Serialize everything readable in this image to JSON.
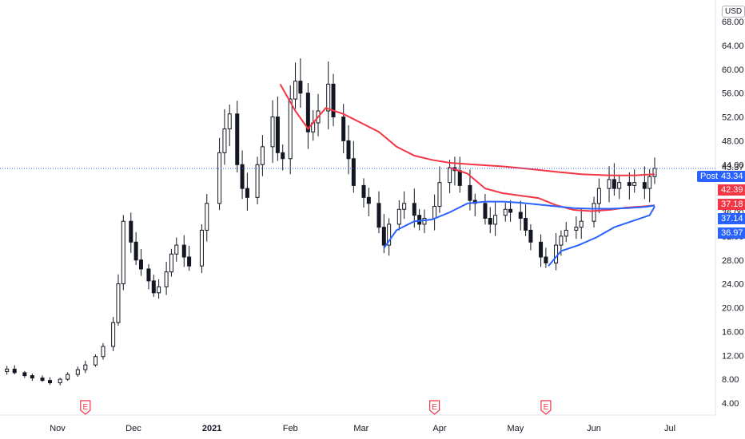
{
  "currency": "USD",
  "labels": {
    "last": "43.37",
    "post_tag": "Post",
    "post": "43.34",
    "ema_red_1": "42.39",
    "ema_red_2": "37.18",
    "ema_blue_1": "37.14",
    "ema_blue_2": "36.97"
  },
  "colors": {
    "up": "#131722",
    "down": "#131722",
    "ema_red": "#f23645",
    "ema_blue": "#2962ff",
    "post": "#2962ff",
    "last_line": "#2962ff"
  },
  "earnings_marker": "E",
  "chart_data": {
    "type": "candlestick",
    "y_ticks": [
      "4.00",
      "8.00",
      "12.00",
      "16.00",
      "20.00",
      "24.00",
      "28.00",
      "32.00",
      "36.00",
      "40.00",
      "44.00",
      "48.00",
      "52.00",
      "56.00",
      "60.00",
      "64.00",
      "68.00"
    ],
    "x_ticks": [
      {
        "label": "Nov",
        "date": "2020-11-01",
        "bold": false
      },
      {
        "label": "Dec",
        "date": "2020-12-01",
        "bold": false
      },
      {
        "label": "2021",
        "date": "2021-01-01",
        "bold": true
      },
      {
        "label": "Feb",
        "date": "2021-02-01",
        "bold": false
      },
      {
        "label": "Mar",
        "date": "2021-03-01",
        "bold": false
      },
      {
        "label": "Apr",
        "date": "2021-04-01",
        "bold": false
      },
      {
        "label": "May",
        "date": "2021-05-01",
        "bold": false
      },
      {
        "label": "Jun",
        "date": "2021-06-01",
        "bold": false
      },
      {
        "label": "Jul",
        "date": "2021-07-01",
        "bold": false
      }
    ],
    "ylim": [
      2,
      70
    ],
    "earnings_dates": [
      "2020-11-12",
      "2021-03-30",
      "2021-05-13"
    ],
    "close_series": [
      {
        "date": "2020-10-05",
        "c": 9.5
      },
      {
        "date": "2020-10-08",
        "c": 9.3
      },
      {
        "date": "2020-10-12",
        "c": 9.7
      },
      {
        "date": "2020-10-15",
        "c": 9.1
      },
      {
        "date": "2020-10-19",
        "c": 8.6
      },
      {
        "date": "2020-10-22",
        "c": 8.2
      },
      {
        "date": "2020-10-26",
        "c": 7.8
      },
      {
        "date": "2020-10-29",
        "c": 7.4
      },
      {
        "date": "2020-11-02",
        "c": 8.0
      },
      {
        "date": "2020-11-05",
        "c": 8.8
      },
      {
        "date": "2020-11-09",
        "c": 9.6
      },
      {
        "date": "2020-11-12",
        "c": 10.4
      },
      {
        "date": "2020-11-16",
        "c": 11.8
      },
      {
        "date": "2020-11-19",
        "c": 13.5
      },
      {
        "date": "2020-11-23",
        "c": 17.5
      },
      {
        "date": "2020-11-25",
        "c": 24.0
      },
      {
        "date": "2020-11-27",
        "c": 34.5
      },
      {
        "date": "2020-11-30",
        "c": 31.0
      },
      {
        "date": "2020-12-02",
        "c": 28.0
      },
      {
        "date": "2020-12-04",
        "c": 26.5
      },
      {
        "date": "2020-12-07",
        "c": 24.5
      },
      {
        "date": "2020-12-09",
        "c": 22.5
      },
      {
        "date": "2020-12-11",
        "c": 23.5
      },
      {
        "date": "2020-12-14",
        "c": 26.0
      },
      {
        "date": "2020-12-16",
        "c": 29.0
      },
      {
        "date": "2020-12-18",
        "c": 30.5
      },
      {
        "date": "2020-12-21",
        "c": 28.5
      },
      {
        "date": "2020-12-23",
        "c": 27.0
      },
      {
        "date": "2020-12-28",
        "c": 33.0
      },
      {
        "date": "2020-12-30",
        "c": 37.5
      },
      {
        "date": "2021-01-04",
        "c": 46.0
      },
      {
        "date": "2021-01-06",
        "c": 50.0
      },
      {
        "date": "2021-01-08",
        "c": 52.5
      },
      {
        "date": "2021-01-11",
        "c": 44.0
      },
      {
        "date": "2021-01-13",
        "c": 40.0
      },
      {
        "date": "2021-01-15",
        "c": 38.5
      },
      {
        "date": "2021-01-19",
        "c": 44.0
      },
      {
        "date": "2021-01-21",
        "c": 47.0
      },
      {
        "date": "2021-01-25",
        "c": 52.0
      },
      {
        "date": "2021-01-27",
        "c": 46.0
      },
      {
        "date": "2021-01-29",
        "c": 45.0
      },
      {
        "date": "2021-02-01",
        "c": 55.0
      },
      {
        "date": "2021-02-03",
        "c": 58.0
      },
      {
        "date": "2021-02-05",
        "c": 56.0
      },
      {
        "date": "2021-02-08",
        "c": 49.5
      },
      {
        "date": "2021-02-10",
        "c": 51.0
      },
      {
        "date": "2021-02-12",
        "c": 53.0
      },
      {
        "date": "2021-02-16",
        "c": 57.5
      },
      {
        "date": "2021-02-18",
        "c": 52.0
      },
      {
        "date": "2021-02-22",
        "c": 48.0
      },
      {
        "date": "2021-02-24",
        "c": 45.0
      },
      {
        "date": "2021-02-26",
        "c": 40.5
      },
      {
        "date": "2021-03-02",
        "c": 38.5
      },
      {
        "date": "2021-03-04",
        "c": 37.5
      },
      {
        "date": "2021-03-08",
        "c": 33.5
      },
      {
        "date": "2021-03-10",
        "c": 30.5
      },
      {
        "date": "2021-03-12",
        "c": 34.0
      },
      {
        "date": "2021-03-16",
        "c": 36.5
      },
      {
        "date": "2021-03-18",
        "c": 37.5
      },
      {
        "date": "2021-03-22",
        "c": 35.5
      },
      {
        "date": "2021-03-24",
        "c": 34.0
      },
      {
        "date": "2021-03-26",
        "c": 35.0
      },
      {
        "date": "2021-03-30",
        "c": 37.0
      },
      {
        "date": "2021-04-01",
        "c": 41.0
      },
      {
        "date": "2021-04-05",
        "c": 43.5
      },
      {
        "date": "2021-04-07",
        "c": 43.0
      },
      {
        "date": "2021-04-09",
        "c": 40.5
      },
      {
        "date": "2021-04-13",
        "c": 38.0
      },
      {
        "date": "2021-04-15",
        "c": 37.5
      },
      {
        "date": "2021-04-19",
        "c": 35.0
      },
      {
        "date": "2021-04-21",
        "c": 34.0
      },
      {
        "date": "2021-04-23",
        "c": 35.5
      },
      {
        "date": "2021-04-27",
        "c": 36.5
      },
      {
        "date": "2021-04-29",
        "c": 36.0
      },
      {
        "date": "2021-05-03",
        "c": 35.0
      },
      {
        "date": "2021-05-05",
        "c": 33.0
      },
      {
        "date": "2021-05-07",
        "c": 31.0
      },
      {
        "date": "2021-05-11",
        "c": 28.5
      },
      {
        "date": "2021-05-13",
        "c": 27.5
      },
      {
        "date": "2021-05-17",
        "c": 30.5
      },
      {
        "date": "2021-05-19",
        "c": 32.0
      },
      {
        "date": "2021-05-21",
        "c": 33.0
      },
      {
        "date": "2021-05-25",
        "c": 33.5
      },
      {
        "date": "2021-05-27",
        "c": 34.5
      },
      {
        "date": "2021-06-01",
        "c": 37.5
      },
      {
        "date": "2021-06-03",
        "c": 40.0
      },
      {
        "date": "2021-06-07",
        "c": 41.5
      },
      {
        "date": "2021-06-09",
        "c": 40.0
      },
      {
        "date": "2021-06-11",
        "c": 41.0
      },
      {
        "date": "2021-06-15",
        "c": 40.5
      },
      {
        "date": "2021-06-17",
        "c": 41.0
      },
      {
        "date": "2021-06-21",
        "c": 40.0
      },
      {
        "date": "2021-06-23",
        "c": 42.0
      },
      {
        "date": "2021-06-25",
        "c": 43.37
      }
    ],
    "ema_red": [
      {
        "date": "2021-01-28",
        "v": 57.5
      },
      {
        "date": "2021-02-03",
        "v": 53.0
      },
      {
        "date": "2021-02-08",
        "v": 50.0
      },
      {
        "date": "2021-02-15",
        "v": 53.5
      },
      {
        "date": "2021-02-22",
        "v": 52.5
      },
      {
        "date": "2021-03-01",
        "v": 51.0
      },
      {
        "date": "2021-03-08",
        "v": 49.5
      },
      {
        "date": "2021-03-15",
        "v": 47.0
      },
      {
        "date": "2021-03-22",
        "v": 45.5
      },
      {
        "date": "2021-03-29",
        "v": 44.8
      },
      {
        "date": "2021-04-05",
        "v": 44.3
      },
      {
        "date": "2021-04-15",
        "v": 44.0
      },
      {
        "date": "2021-04-26",
        "v": 43.7
      },
      {
        "date": "2021-05-06",
        "v": 43.3
      },
      {
        "date": "2021-05-17",
        "v": 42.8
      },
      {
        "date": "2021-05-27",
        "v": 42.4
      },
      {
        "date": "2021-06-07",
        "v": 42.2
      },
      {
        "date": "2021-06-17",
        "v": 42.2
      },
      {
        "date": "2021-06-25",
        "v": 42.39
      }
    ],
    "ema_red_short": [
      {
        "date": "2021-04-05",
        "v": 43.5
      },
      {
        "date": "2021-04-12",
        "v": 42.5
      },
      {
        "date": "2021-04-19",
        "v": 40.0
      },
      {
        "date": "2021-04-26",
        "v": 39.2
      },
      {
        "date": "2021-05-03",
        "v": 38.8
      },
      {
        "date": "2021-05-10",
        "v": 38.4
      },
      {
        "date": "2021-05-17",
        "v": 37.2
      },
      {
        "date": "2021-05-24",
        "v": 36.4
      },
      {
        "date": "2021-05-31",
        "v": 36.2
      },
      {
        "date": "2021-06-07",
        "v": 36.4
      },
      {
        "date": "2021-06-14",
        "v": 36.8
      },
      {
        "date": "2021-06-21",
        "v": 37.0
      },
      {
        "date": "2021-06-25",
        "v": 37.18
      }
    ],
    "ema_blue": [
      {
        "date": "2021-03-10",
        "v": 30.0
      },
      {
        "date": "2021-03-15",
        "v": 33.0
      },
      {
        "date": "2021-03-22",
        "v": 34.5
      },
      {
        "date": "2021-03-29",
        "v": 34.8
      },
      {
        "date": "2021-04-05",
        "v": 36.0
      },
      {
        "date": "2021-04-12",
        "v": 37.5
      },
      {
        "date": "2021-04-19",
        "v": 37.8
      },
      {
        "date": "2021-04-26",
        "v": 37.8
      },
      {
        "date": "2021-05-03",
        "v": 37.6
      },
      {
        "date": "2021-05-10",
        "v": 37.3
      },
      {
        "date": "2021-05-17",
        "v": 37.0
      },
      {
        "date": "2021-05-24",
        "v": 36.7
      },
      {
        "date": "2021-05-31",
        "v": 36.6
      },
      {
        "date": "2021-06-07",
        "v": 36.6
      },
      {
        "date": "2021-06-14",
        "v": 36.7
      },
      {
        "date": "2021-06-21",
        "v": 36.9
      },
      {
        "date": "2021-06-25",
        "v": 37.14
      }
    ],
    "ema_blue_low": [
      {
        "date": "2021-05-14",
        "v": 27.0
      },
      {
        "date": "2021-05-19",
        "v": 29.5
      },
      {
        "date": "2021-05-26",
        "v": 30.5
      },
      {
        "date": "2021-06-02",
        "v": 31.8
      },
      {
        "date": "2021-06-09",
        "v": 33.5
      },
      {
        "date": "2021-06-16",
        "v": 34.5
      },
      {
        "date": "2021-06-23",
        "v": 35.5
      },
      {
        "date": "2021-06-25",
        "v": 36.97
      }
    ]
  }
}
